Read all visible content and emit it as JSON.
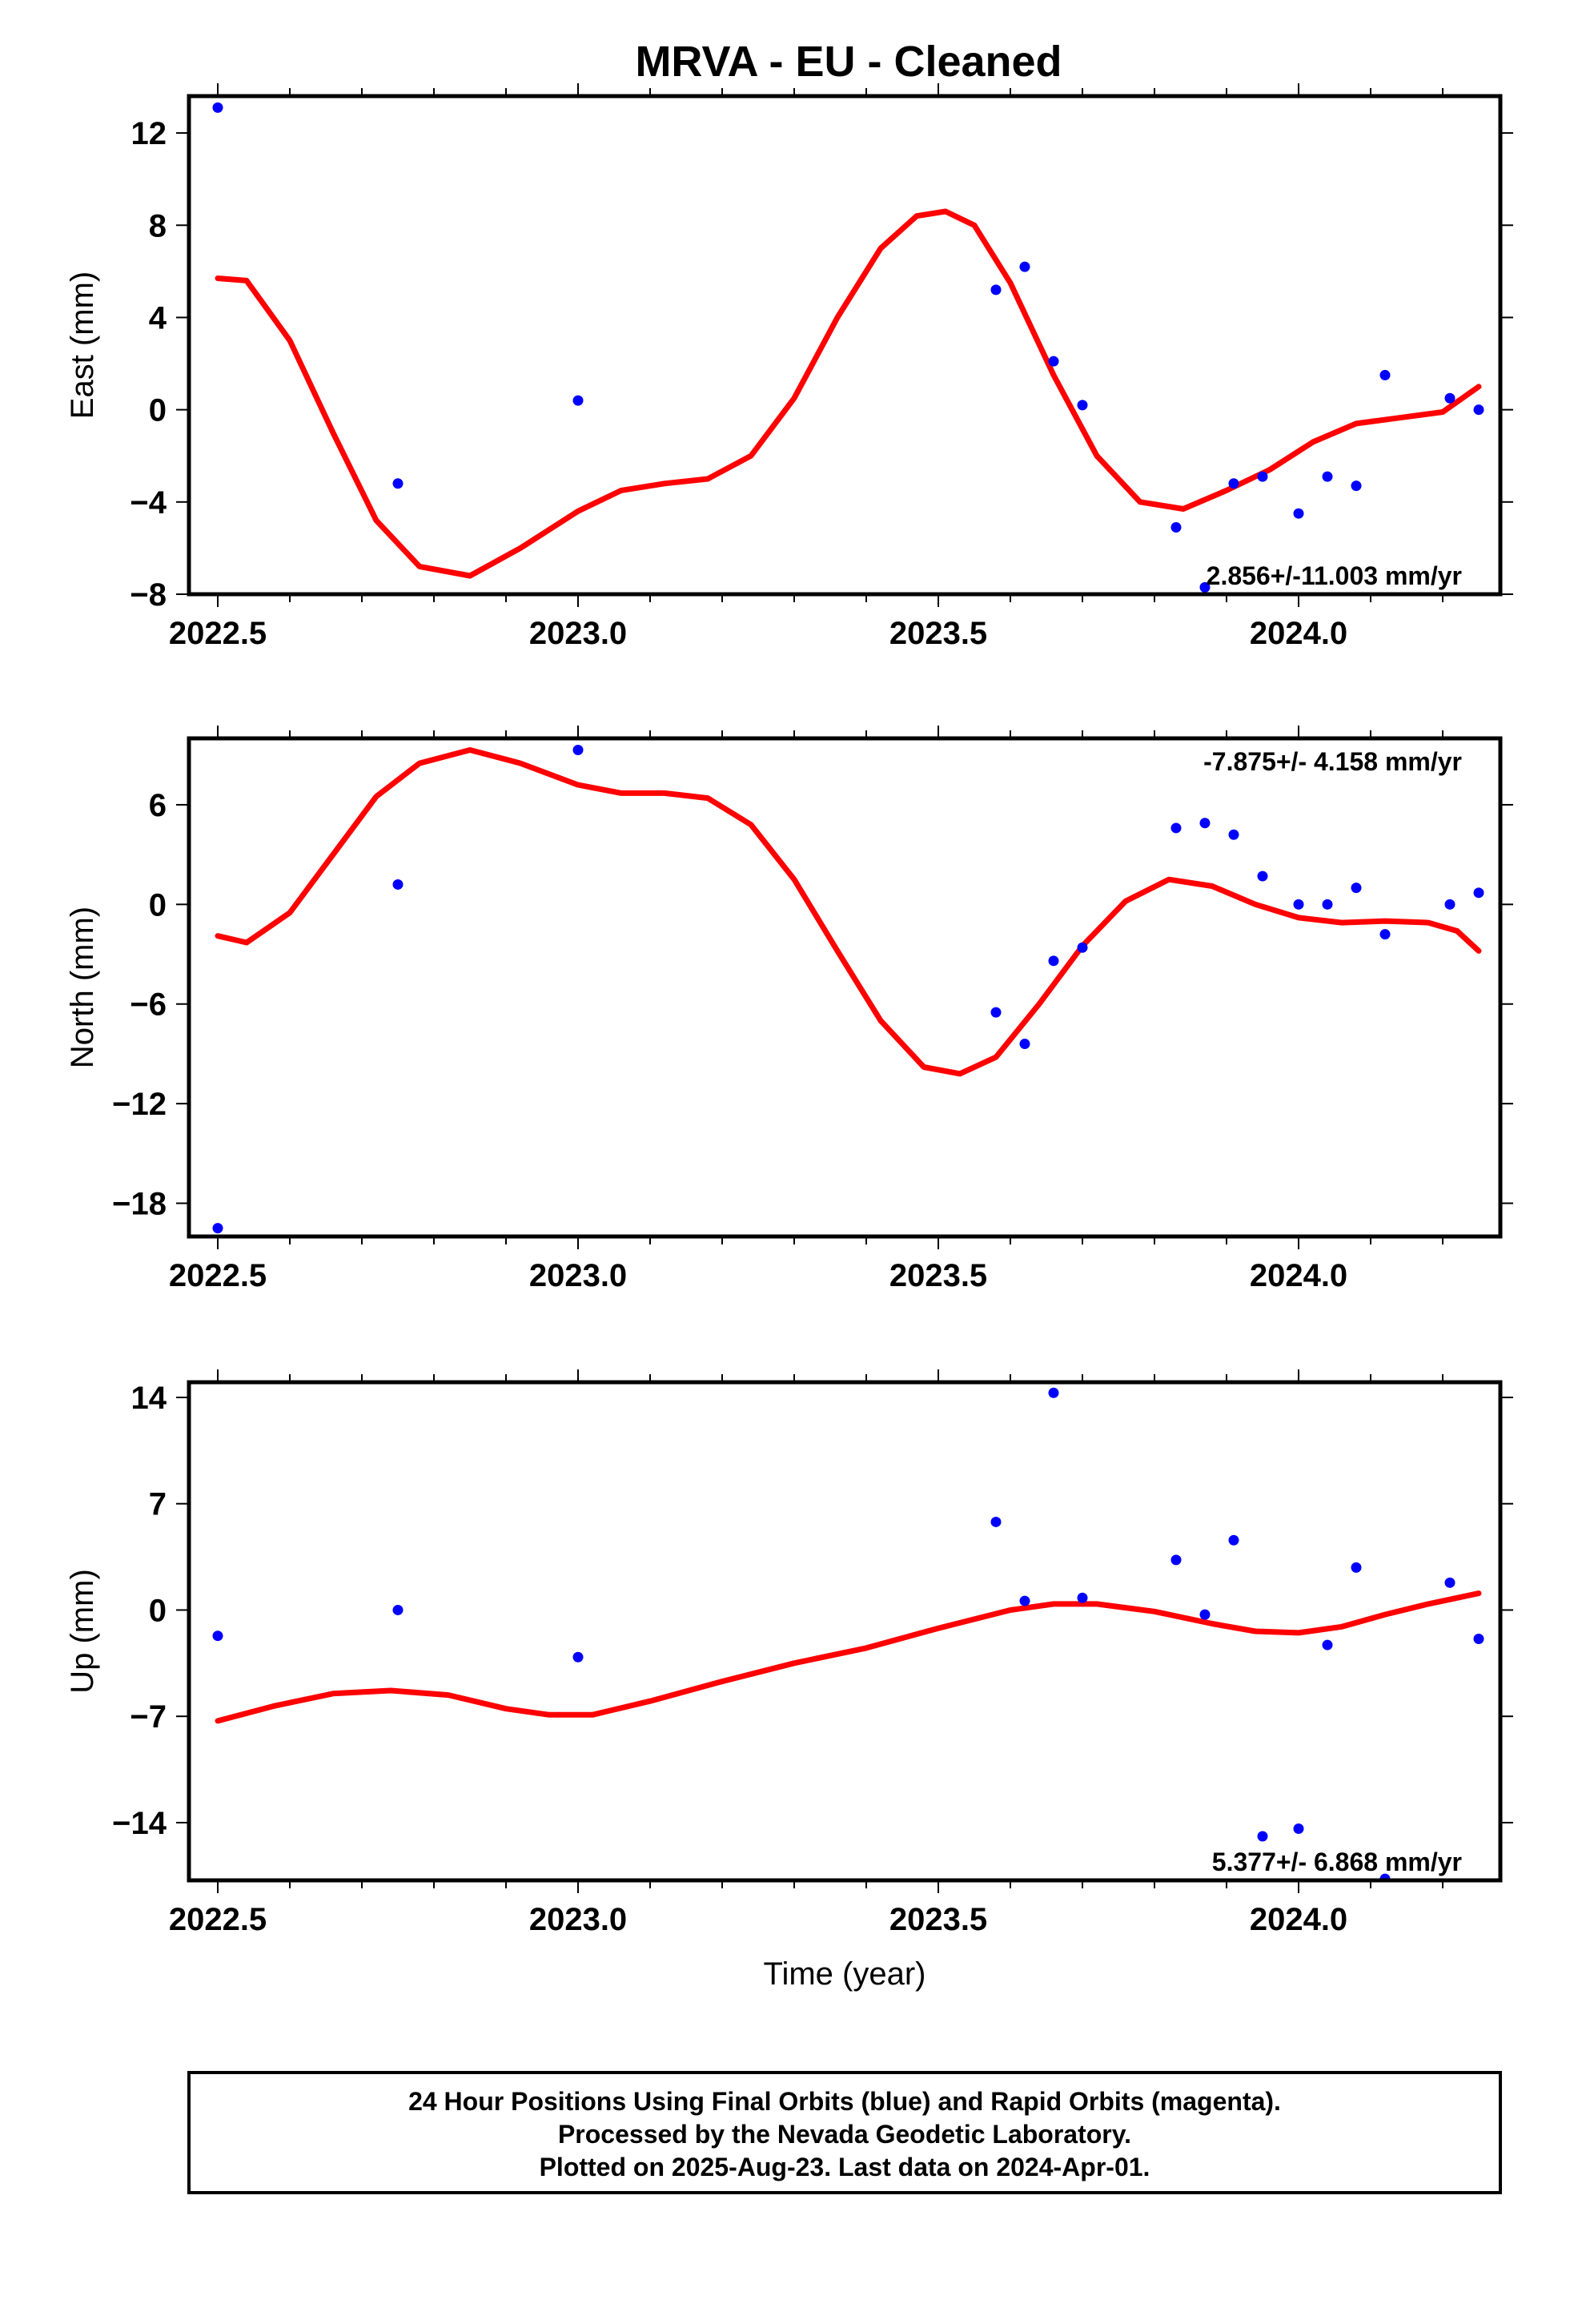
{
  "figure": {
    "title": "MRVA  - EU - Cleaned",
    "footer_lines": [
      "24 Hour Positions Using Final Orbits (blue) and Rapid Orbits (magenta).",
      "Processed by the Nevada Geodetic Laboratory.",
      "Plotted on 2025-Aug-23. Last data on 2024-Apr-01."
    ],
    "colors": {
      "points": "#0000ff",
      "model": "#ff0000",
      "frame": "#000000"
    }
  },
  "chart_data": [
    {
      "type": "scatter",
      "panel": "east",
      "ylabel": "East (mm)",
      "xlabel": "",
      "xlim": [
        2022.46,
        2024.28
      ],
      "ylim": [
        -8,
        13.6
      ],
      "xticks": [
        2022.5,
        2023.0,
        2023.5,
        2024.0
      ],
      "xtick_labels": [
        "2022.5",
        "2023.0",
        "2023.5",
        "2024.0"
      ],
      "yticks": [
        -8,
        -4,
        0,
        4,
        8,
        12
      ],
      "ytick_labels": [
        "−8",
        "−4",
        "0",
        "4",
        "8",
        "12"
      ],
      "rate": "2.856+/-11.003 mm/yr",
      "rate_position": "bottom-right",
      "points": [
        [
          2022.5,
          13.1
        ],
        [
          2022.75,
          -3.2
        ],
        [
          2023.0,
          0.4
        ],
        [
          2023.58,
          5.2
        ],
        [
          2023.62,
          6.2
        ],
        [
          2023.66,
          2.1
        ],
        [
          2023.7,
          0.2
        ],
        [
          2023.83,
          -5.1
        ],
        [
          2023.87,
          -7.7
        ],
        [
          2023.91,
          -3.2
        ],
        [
          2023.95,
          -2.9
        ],
        [
          2024.0,
          -4.5
        ],
        [
          2024.04,
          -2.9
        ],
        [
          2024.08,
          -3.3
        ],
        [
          2024.12,
          1.5
        ],
        [
          2024.21,
          0.5
        ],
        [
          2024.25,
          0.0
        ]
      ],
      "model": [
        [
          2022.5,
          5.7
        ],
        [
          2022.54,
          5.6
        ],
        [
          2022.6,
          3.0
        ],
        [
          2022.66,
          -1.0
        ],
        [
          2022.72,
          -4.8
        ],
        [
          2022.78,
          -6.8
        ],
        [
          2022.85,
          -7.2
        ],
        [
          2022.92,
          -6.0
        ],
        [
          2023.0,
          -4.4
        ],
        [
          2023.06,
          -3.5
        ],
        [
          2023.12,
          -3.2
        ],
        [
          2023.18,
          -3.0
        ],
        [
          2023.24,
          -2.0
        ],
        [
          2023.3,
          0.5
        ],
        [
          2023.36,
          4.0
        ],
        [
          2023.42,
          7.0
        ],
        [
          2023.47,
          8.4
        ],
        [
          2023.51,
          8.6
        ],
        [
          2023.55,
          8.0
        ],
        [
          2023.6,
          5.5
        ],
        [
          2023.66,
          1.5
        ],
        [
          2023.72,
          -2.0
        ],
        [
          2023.78,
          -4.0
        ],
        [
          2023.84,
          -4.3
        ],
        [
          2023.9,
          -3.5
        ],
        [
          2023.96,
          -2.6
        ],
        [
          2024.02,
          -1.4
        ],
        [
          2024.08,
          -0.6
        ],
        [
          2024.14,
          -0.35
        ],
        [
          2024.2,
          -0.1
        ],
        [
          2024.25,
          1.0
        ]
      ]
    },
    {
      "type": "scatter",
      "panel": "north",
      "ylabel": "North (mm)",
      "xlabel": "",
      "xlim": [
        2022.46,
        2024.28
      ],
      "ylim": [
        -20,
        10
      ],
      "xticks": [
        2022.5,
        2023.0,
        2023.5,
        2024.0
      ],
      "xtick_labels": [
        "2022.5",
        "2023.0",
        "2023.5",
        "2024.0"
      ],
      "yticks": [
        -18,
        -12,
        -6,
        0,
        6
      ],
      "ytick_labels": [
        "−18",
        "−12",
        "−6",
        "0",
        "6"
      ],
      "rate": "-7.875+/- 4.158 mm/yr",
      "rate_position": "top-right",
      "points": [
        [
          2022.5,
          -19.5
        ],
        [
          2022.75,
          1.2
        ],
        [
          2023.0,
          9.3
        ],
        [
          2023.58,
          -6.5
        ],
        [
          2023.62,
          -8.4
        ],
        [
          2023.66,
          -3.4
        ],
        [
          2023.7,
          -2.6
        ],
        [
          2023.83,
          4.6
        ],
        [
          2023.87,
          4.9
        ],
        [
          2023.91,
          4.2
        ],
        [
          2023.95,
          1.7
        ],
        [
          2024.0,
          0.0
        ],
        [
          2024.04,
          0.0
        ],
        [
          2024.08,
          1.0
        ],
        [
          2024.12,
          -1.8
        ],
        [
          2024.21,
          0.0
        ],
        [
          2024.25,
          0.7
        ]
      ],
      "model": [
        [
          2022.5,
          -1.9
        ],
        [
          2022.54,
          -2.3
        ],
        [
          2022.6,
          -0.5
        ],
        [
          2022.66,
          3.0
        ],
        [
          2022.72,
          6.5
        ],
        [
          2022.78,
          8.5
        ],
        [
          2022.85,
          9.3
        ],
        [
          2022.92,
          8.5
        ],
        [
          2023.0,
          7.2
        ],
        [
          2023.06,
          6.7
        ],
        [
          2023.12,
          6.7
        ],
        [
          2023.18,
          6.4
        ],
        [
          2023.24,
          4.8
        ],
        [
          2023.3,
          1.5
        ],
        [
          2023.36,
          -2.8
        ],
        [
          2023.42,
          -7.0
        ],
        [
          2023.48,
          -9.8
        ],
        [
          2023.53,
          -10.2
        ],
        [
          2023.58,
          -9.2
        ],
        [
          2023.64,
          -6.0
        ],
        [
          2023.7,
          -2.5
        ],
        [
          2023.76,
          0.2
        ],
        [
          2023.82,
          1.5
        ],
        [
          2023.88,
          1.1
        ],
        [
          2023.94,
          0.0
        ],
        [
          2024.0,
          -0.8
        ],
        [
          2024.06,
          -1.1
        ],
        [
          2024.12,
          -1.0
        ],
        [
          2024.18,
          -1.1
        ],
        [
          2024.22,
          -1.6
        ],
        [
          2024.25,
          -2.8
        ]
      ]
    },
    {
      "type": "scatter",
      "panel": "up",
      "ylabel": "Up (mm)",
      "xlabel": "Time (year)",
      "xlim": [
        2022.46,
        2024.28
      ],
      "ylim": [
        -17.8,
        15
      ],
      "xticks": [
        2022.5,
        2023.0,
        2023.5,
        2024.0
      ],
      "xtick_labels": [
        "2022.5",
        "2023.0",
        "2023.5",
        "2024.0"
      ],
      "yticks": [
        -14,
        -7,
        0,
        7,
        14
      ],
      "ytick_labels": [
        "−14",
        "−7",
        "0",
        "7",
        "14"
      ],
      "rate": "5.377+/- 6.868 mm/yr",
      "rate_position": "bottom-right",
      "points": [
        [
          2022.5,
          -1.7
        ],
        [
          2022.75,
          0.0
        ],
        [
          2023.0,
          -3.1
        ],
        [
          2023.58,
          5.8
        ],
        [
          2023.62,
          0.6
        ],
        [
          2023.66,
          14.3
        ],
        [
          2023.7,
          0.8
        ],
        [
          2023.83,
          3.3
        ],
        [
          2023.87,
          -0.3
        ],
        [
          2023.91,
          4.6
        ],
        [
          2023.95,
          -14.9
        ],
        [
          2024.0,
          -14.4
        ],
        [
          2024.04,
          -2.3
        ],
        [
          2024.08,
          2.8
        ],
        [
          2024.12,
          -17.7
        ],
        [
          2024.21,
          1.8
        ],
        [
          2024.25,
          -1.9
        ]
      ],
      "model": [
        [
          2022.5,
          -7.3
        ],
        [
          2022.58,
          -6.3
        ],
        [
          2022.66,
          -5.5
        ],
        [
          2022.74,
          -5.3
        ],
        [
          2022.82,
          -5.6
        ],
        [
          2022.9,
          -6.5
        ],
        [
          2022.96,
          -6.9
        ],
        [
          2023.02,
          -6.9
        ],
        [
          2023.1,
          -6.0
        ],
        [
          2023.2,
          -4.7
        ],
        [
          2023.3,
          -3.5
        ],
        [
          2023.4,
          -2.5
        ],
        [
          2023.5,
          -1.2
        ],
        [
          2023.6,
          0.0
        ],
        [
          2023.66,
          0.4
        ],
        [
          2023.72,
          0.4
        ],
        [
          2023.8,
          -0.1
        ],
        [
          2023.88,
          -0.9
        ],
        [
          2023.94,
          -1.4
        ],
        [
          2024.0,
          -1.5
        ],
        [
          2024.06,
          -1.1
        ],
        [
          2024.12,
          -0.3
        ],
        [
          2024.18,
          0.4
        ],
        [
          2024.25,
          1.1
        ]
      ]
    }
  ]
}
